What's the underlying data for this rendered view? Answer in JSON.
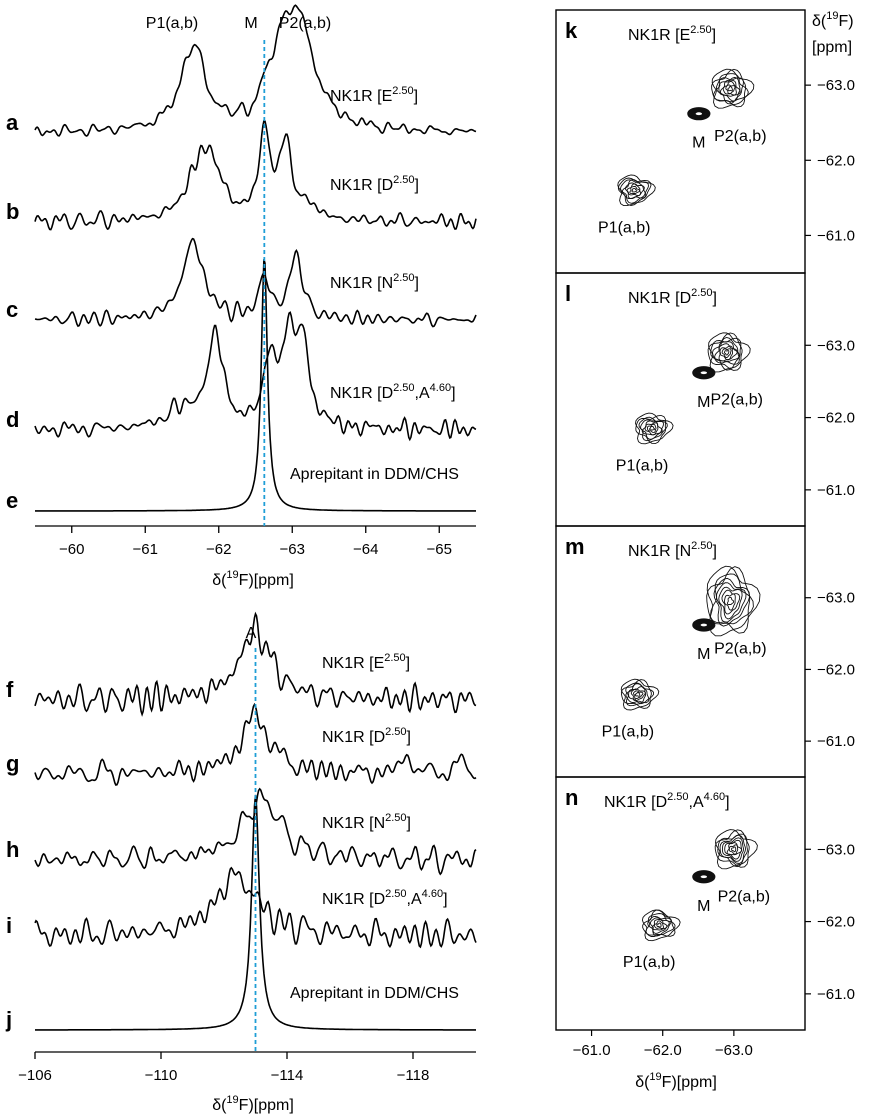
{
  "colors": {
    "trace": "#000000",
    "reference_line": "#1f9ed6"
  },
  "top_panel": {
    "peak_labels": {
      "p1": "P1(a,b)",
      "m": "M",
      "p2": "P2(a,b)"
    },
    "reference_ppm": -62.62,
    "xlim": [
      -59.5,
      -65.5
    ],
    "ticks": [
      -60,
      -61,
      -62,
      -63,
      -64,
      -65
    ],
    "tick_labels": [
      "−60",
      "−61",
      "−62",
      "−63",
      "−64",
      "−65"
    ],
    "xlabel_prefix": "δ(",
    "xlabel_sup": "19",
    "xlabel_suffix": "F)[ppm]",
    "traces": [
      {
        "letter": "a",
        "label": "NK1R [E",
        "sup": "2.50",
        "label_end": "]"
      },
      {
        "letter": "b",
        "label": "NK1R [D",
        "sup": "2.50",
        "label_end": "]"
      },
      {
        "letter": "c",
        "label": "NK1R [N",
        "sup": "2.50",
        "label_end": "]"
      },
      {
        "letter": "d",
        "label": "NK1R [D",
        "sup": "2.50",
        "label_mid": ",A",
        "sup2": "4.60",
        "label_end": "]"
      },
      {
        "letter": "e",
        "label": "Aprepitant in DDM/CHS",
        "sup": "",
        "label_end": ""
      }
    ]
  },
  "bottom_panel": {
    "peak_label": "A",
    "reference_ppm": -113.0,
    "xlim": [
      -106,
      -120
    ],
    "ticks": [
      -106,
      -110,
      -114,
      -118
    ],
    "tick_labels": [
      "−106",
      "−110",
      "−114",
      "−118"
    ],
    "xlabel_prefix": "δ(",
    "xlabel_sup": "19",
    "xlabel_suffix": "F)[ppm]",
    "traces": [
      {
        "letter": "f",
        "label": "NK1R [E",
        "sup": "2.50",
        "label_end": "]"
      },
      {
        "letter": "g",
        "label": "NK1R [D",
        "sup": "2.50",
        "label_end": "]"
      },
      {
        "letter": "h",
        "label": "NK1R [N",
        "sup": "2.50",
        "label_end": "]"
      },
      {
        "letter": "i",
        "label": "NK1R [D",
        "sup": "2.50",
        "label_mid": ",A",
        "sup2": "4.60",
        "label_end": "]"
      },
      {
        "letter": "j",
        "label": "Aprepitant in DDM/CHS",
        "sup": "",
        "label_end": ""
      }
    ]
  },
  "right_panels": {
    "ylabel_prefix": "δ(",
    "ylabel_sup": "19",
    "ylabel_suffix": "F)",
    "ylabel_unit": "[ppm]",
    "xlabel_prefix": "δ(",
    "xlabel_sup": "19",
    "xlabel_suffix": "F)[ppm]",
    "yticks": [
      -63.0,
      -62.0,
      -61.0
    ],
    "ytick_labels": [
      "−63.0",
      "−62.0",
      "−61.0"
    ],
    "xticks": [
      -61.0,
      -62.0,
      -63.0
    ],
    "xtick_labels": [
      "−61.0",
      "−62.0",
      "−63.0"
    ],
    "axis_range": [
      -60.5,
      -64.0
    ],
    "m_label": "M",
    "p1_label": "P1(a,b)",
    "p2_label": "P2(a,b)",
    "panels": [
      {
        "letter": "k",
        "label": "NK1R [E",
        "sup": "2.50",
        "label_end": "]"
      },
      {
        "letter": "l",
        "label": "NK1R [D",
        "sup": "2.50",
        "label_end": "]"
      },
      {
        "letter": "m",
        "label": "NK1R [N",
        "sup": "2.50",
        "label_end": "]"
      },
      {
        "letter": "n",
        "label": "NK1R [D",
        "sup": "2.50",
        "label_mid": ",A",
        "sup2": "4.60",
        "label_end": "]"
      }
    ]
  },
  "chart_data": [
    {
      "type": "line",
      "title": "",
      "xlabel": "δ(19F)[ppm]",
      "xlim": [
        -59.5,
        -65.5
      ],
      "series": [
        {
          "name": "NK1R [E2.50]",
          "peaks": [
            {
              "x": -61.65,
              "height": 0.85,
              "width": 0.2
            },
            {
              "x": -62.62,
              "height": 0.15,
              "width": 0.05
            },
            {
              "x": -63.1,
              "height": 1.0,
              "width": 0.25
            },
            {
              "x": -62.85,
              "height": 0.6,
              "width": 0.18
            }
          ]
        },
        {
          "name": "NK1R [D2.50]",
          "peaks": [
            {
              "x": -61.75,
              "height": 0.65,
              "width": 0.2
            },
            {
              "x": -61.95,
              "height": 0.35,
              "width": 0.15
            },
            {
              "x": -62.62,
              "height": 1.0,
              "width": 0.08
            },
            {
              "x": -62.9,
              "height": 0.85,
              "width": 0.1
            },
            {
              "x": -63.2,
              "height": 0.15,
              "width": 0.15
            }
          ]
        },
        {
          "name": "NK1R [N2.50]",
          "peaks": [
            {
              "x": -61.65,
              "height": 1.0,
              "width": 0.17
            },
            {
              "x": -62.62,
              "height": 0.55,
              "width": 0.08
            },
            {
              "x": -63.05,
              "height": 0.85,
              "width": 0.1
            }
          ]
        },
        {
          "name": "NK1R [D2.50,A4.60]",
          "peaks": [
            {
              "x": -61.95,
              "height": 1.0,
              "width": 0.12
            },
            {
              "x": -61.5,
              "height": 0.2,
              "width": 0.25
            },
            {
              "x": -62.7,
              "height": 0.7,
              "width": 0.1
            },
            {
              "x": -62.95,
              "height": 0.95,
              "width": 0.1
            },
            {
              "x": -63.15,
              "height": 0.85,
              "width": 0.1
            }
          ]
        },
        {
          "name": "Aprepitant in DDM/CHS",
          "peaks": [
            {
              "x": -62.62,
              "height": 1.0,
              "width": 0.05
            }
          ]
        }
      ]
    },
    {
      "type": "line",
      "title": "",
      "xlabel": "δ(19F)[ppm]",
      "xlim": [
        -106,
        -120
      ],
      "series": [
        {
          "name": "NK1R [E2.50]",
          "peaks": [
            {
              "x": -113.0,
              "height": 1.0,
              "width": 0.6
            }
          ]
        },
        {
          "name": "NK1R [D2.50]",
          "peaks": [
            {
              "x": -113.0,
              "height": 1.0,
              "width": 0.55
            },
            {
              "x": -117.8,
              "height": 0.3,
              "width": 0.2
            },
            {
              "x": -119.5,
              "height": 0.25,
              "width": 0.15
            }
          ]
        },
        {
          "name": "NK1R [N2.50]",
          "peaks": [
            {
              "x": -113.2,
              "height": 1.0,
              "width": 0.7
            }
          ]
        },
        {
          "name": "NK1R [D2.50,A4.60]",
          "peaks": [
            {
              "x": -112.4,
              "height": 1.0,
              "width": 0.8
            }
          ]
        },
        {
          "name": "Aprepitant in DDM/CHS",
          "peaks": [
            {
              "x": -113.0,
              "height": 1.0,
              "width": 0.15
            }
          ]
        }
      ]
    },
    {
      "type": "heatmap",
      "title": "",
      "xlabel": "δ(19F)[ppm]",
      "ylabel": "δ(19F) [ppm]",
      "xlim": [
        -60.5,
        -64.0
      ],
      "ylim": [
        -60.5,
        -64.0
      ],
      "panels": [
        {
          "name": "NK1R [E2.50]",
          "peaks": [
            {
              "label": "M",
              "x": -62.55,
              "y": -62.62
            },
            {
              "label": "P2(a,b)",
              "x": -62.95,
              "y": -62.95
            },
            {
              "label": "P1(a,b)",
              "x": -61.6,
              "y": -61.6
            }
          ]
        },
        {
          "name": "NK1R [D2.50]",
          "peaks": [
            {
              "label": "M",
              "x": -62.62,
              "y": -62.62
            },
            {
              "label": "P2(a,b)",
              "x": -62.9,
              "y": -62.9
            },
            {
              "label": "P1(a,b)",
              "x": -61.85,
              "y": -61.85
            }
          ]
        },
        {
          "name": "NK1R [N2.50]",
          "peaks": [
            {
              "label": "M",
              "x": -62.62,
              "y": -62.62
            },
            {
              "label": "P2(a,b)",
              "x": -62.95,
              "y": -62.95
            },
            {
              "label": "P1(a,b)",
              "x": -61.65,
              "y": -61.65
            }
          ]
        },
        {
          "name": "NK1R [D2.50,A4.60]",
          "peaks": [
            {
              "label": "M",
              "x": -62.62,
              "y": -62.62
            },
            {
              "label": "P2(a,b)",
              "x": -63.0,
              "y": -63.0
            },
            {
              "label": "P1(a,b)",
              "x": -61.95,
              "y": -61.95
            }
          ]
        }
      ]
    }
  ]
}
